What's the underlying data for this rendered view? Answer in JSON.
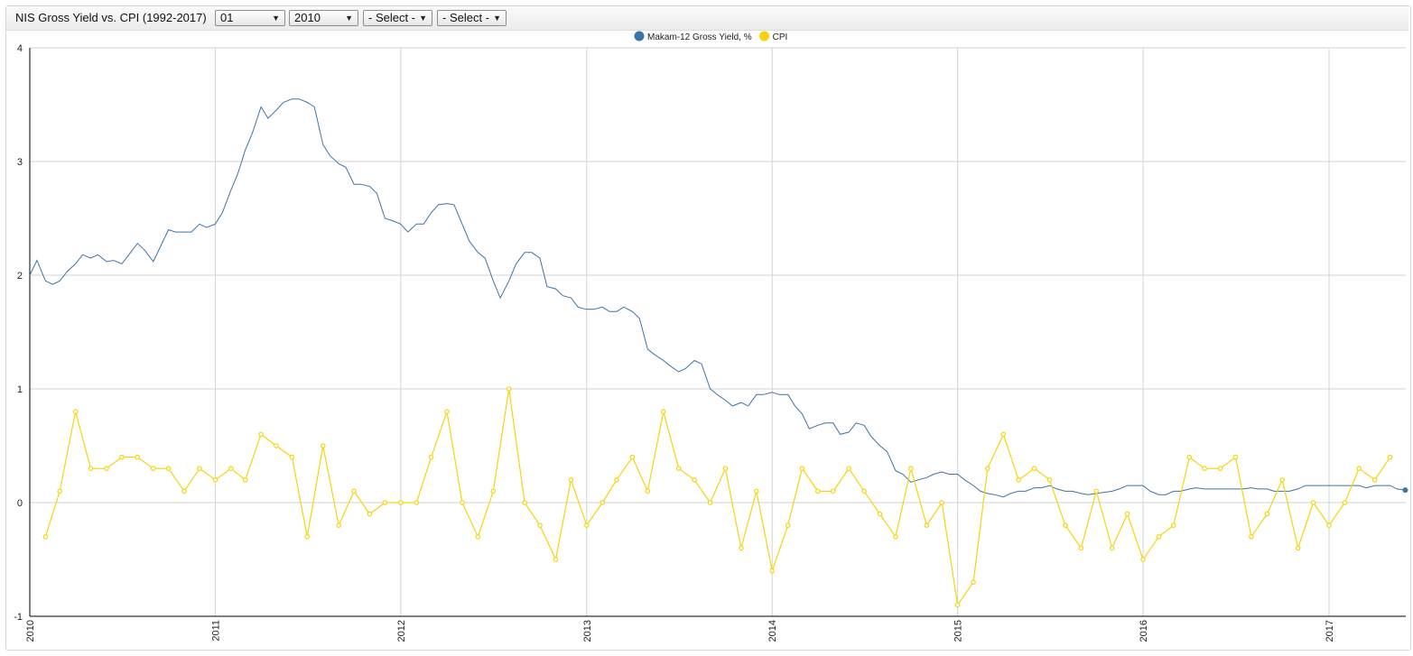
{
  "toolbar": {
    "title": "NIS Gross Yield vs. CPI (1992-2017)",
    "month_select": "01",
    "year_select": "2010",
    "select_a": "- Select -",
    "select_b": "- Select -",
    "arrow": "▼"
  },
  "chart_data": {
    "type": "line",
    "legend_position": "top-center",
    "grid": true,
    "ylim": [
      -1,
      4
    ],
    "yticks": [
      -1,
      0,
      1,
      2,
      3,
      4
    ],
    "xlim": [
      "2010-01-01",
      "2017-06-01"
    ],
    "xticks": [
      "2010",
      "2011",
      "2012",
      "2013",
      "2014",
      "2015",
      "2016",
      "2017"
    ],
    "series": [
      {
        "name": "Makam-12 Gross Yield, %",
        "color": "#3f74a6",
        "points": [
          [
            "2010-01-01",
            2.0
          ],
          [
            "2010-01-15",
            2.13
          ],
          [
            "2010-02-01",
            1.95
          ],
          [
            "2010-02-15",
            1.92
          ],
          [
            "2010-03-01",
            1.95
          ],
          [
            "2010-03-15",
            2.03
          ],
          [
            "2010-04-01",
            2.1
          ],
          [
            "2010-04-15",
            2.18
          ],
          [
            "2010-05-01",
            2.15
          ],
          [
            "2010-05-15",
            2.18
          ],
          [
            "2010-06-01",
            2.12
          ],
          [
            "2010-06-15",
            2.13
          ],
          [
            "2010-07-01",
            2.1
          ],
          [
            "2010-07-15",
            2.18
          ],
          [
            "2010-08-01",
            2.28
          ],
          [
            "2010-08-15",
            2.22
          ],
          [
            "2010-09-01",
            2.12
          ],
          [
            "2010-09-15",
            2.25
          ],
          [
            "2010-10-01",
            2.4
          ],
          [
            "2010-10-15",
            2.38
          ],
          [
            "2010-11-01",
            2.38
          ],
          [
            "2010-11-15",
            2.38
          ],
          [
            "2010-12-01",
            2.45
          ],
          [
            "2010-12-15",
            2.42
          ],
          [
            "2011-01-01",
            2.45
          ],
          [
            "2011-01-15",
            2.55
          ],
          [
            "2011-02-01",
            2.75
          ],
          [
            "2011-02-15",
            2.9
          ],
          [
            "2011-03-01",
            3.1
          ],
          [
            "2011-03-15",
            3.25
          ],
          [
            "2011-04-01",
            3.48
          ],
          [
            "2011-04-15",
            3.38
          ],
          [
            "2011-05-01",
            3.45
          ],
          [
            "2011-05-15",
            3.52
          ],
          [
            "2011-06-01",
            3.55
          ],
          [
            "2011-06-15",
            3.55
          ],
          [
            "2011-07-01",
            3.52
          ],
          [
            "2011-07-15",
            3.48
          ],
          [
            "2011-08-01",
            3.15
          ],
          [
            "2011-08-15",
            3.05
          ],
          [
            "2011-09-01",
            2.98
          ],
          [
            "2011-09-15",
            2.95
          ],
          [
            "2011-10-01",
            2.8
          ],
          [
            "2011-10-15",
            2.8
          ],
          [
            "2011-11-01",
            2.78
          ],
          [
            "2011-11-15",
            2.72
          ],
          [
            "2011-12-01",
            2.5
          ],
          [
            "2011-12-15",
            2.48
          ],
          [
            "2012-01-01",
            2.45
          ],
          [
            "2012-01-15",
            2.38
          ],
          [
            "2012-02-01",
            2.45
          ],
          [
            "2012-02-15",
            2.45
          ],
          [
            "2012-03-01",
            2.55
          ],
          [
            "2012-03-15",
            2.62
          ],
          [
            "2012-04-01",
            2.63
          ],
          [
            "2012-04-15",
            2.62
          ],
          [
            "2012-05-01",
            2.45
          ],
          [
            "2012-05-15",
            2.3
          ],
          [
            "2012-06-01",
            2.2
          ],
          [
            "2012-06-15",
            2.15
          ],
          [
            "2012-07-01",
            1.95
          ],
          [
            "2012-07-15",
            1.8
          ],
          [
            "2012-08-01",
            1.95
          ],
          [
            "2012-08-15",
            2.1
          ],
          [
            "2012-09-01",
            2.2
          ],
          [
            "2012-09-15",
            2.2
          ],
          [
            "2012-10-01",
            2.15
          ],
          [
            "2012-10-15",
            1.9
          ],
          [
            "2012-11-01",
            1.88
          ],
          [
            "2012-11-15",
            1.82
          ],
          [
            "2012-12-01",
            1.8
          ],
          [
            "2012-12-15",
            1.72
          ],
          [
            "2013-01-01",
            1.7
          ],
          [
            "2013-01-15",
            1.7
          ],
          [
            "2013-02-01",
            1.72
          ],
          [
            "2013-02-15",
            1.68
          ],
          [
            "2013-03-01",
            1.68
          ],
          [
            "2013-03-15",
            1.72
          ],
          [
            "2013-04-01",
            1.68
          ],
          [
            "2013-04-15",
            1.62
          ],
          [
            "2013-05-01",
            1.35
          ],
          [
            "2013-05-15",
            1.3
          ],
          [
            "2013-06-01",
            1.25
          ],
          [
            "2013-06-15",
            1.2
          ],
          [
            "2013-07-01",
            1.15
          ],
          [
            "2013-07-15",
            1.18
          ],
          [
            "2013-08-01",
            1.25
          ],
          [
            "2013-08-15",
            1.22
          ],
          [
            "2013-09-01",
            1.0
          ],
          [
            "2013-09-15",
            0.95
          ],
          [
            "2013-10-01",
            0.9
          ],
          [
            "2013-10-15",
            0.85
          ],
          [
            "2013-11-01",
            0.88
          ],
          [
            "2013-11-15",
            0.85
          ],
          [
            "2013-12-01",
            0.95
          ],
          [
            "2013-12-15",
            0.95
          ],
          [
            "2014-01-01",
            0.97
          ],
          [
            "2014-01-15",
            0.95
          ],
          [
            "2014-02-01",
            0.95
          ],
          [
            "2014-02-15",
            0.85
          ],
          [
            "2014-03-01",
            0.78
          ],
          [
            "2014-03-15",
            0.65
          ],
          [
            "2014-04-01",
            0.68
          ],
          [
            "2014-04-15",
            0.7
          ],
          [
            "2014-05-01",
            0.7
          ],
          [
            "2014-05-15",
            0.6
          ],
          [
            "2014-06-01",
            0.62
          ],
          [
            "2014-06-15",
            0.7
          ],
          [
            "2014-07-01",
            0.68
          ],
          [
            "2014-07-15",
            0.58
          ],
          [
            "2014-08-01",
            0.5
          ],
          [
            "2014-08-15",
            0.45
          ],
          [
            "2014-09-01",
            0.28
          ],
          [
            "2014-09-15",
            0.25
          ],
          [
            "2014-10-01",
            0.18
          ],
          [
            "2014-10-15",
            0.2
          ],
          [
            "2014-11-01",
            0.22
          ],
          [
            "2014-11-15",
            0.25
          ],
          [
            "2014-12-01",
            0.27
          ],
          [
            "2014-12-15",
            0.25
          ],
          [
            "2015-01-01",
            0.25
          ],
          [
            "2015-01-15",
            0.2
          ],
          [
            "2015-02-01",
            0.15
          ],
          [
            "2015-02-15",
            0.1
          ],
          [
            "2015-03-01",
            0.08
          ],
          [
            "2015-03-15",
            0.07
          ],
          [
            "2015-04-01",
            0.05
          ],
          [
            "2015-04-15",
            0.08
          ],
          [
            "2015-05-01",
            0.1
          ],
          [
            "2015-05-15",
            0.1
          ],
          [
            "2015-06-01",
            0.13
          ],
          [
            "2015-06-15",
            0.13
          ],
          [
            "2015-07-01",
            0.15
          ],
          [
            "2015-07-15",
            0.12
          ],
          [
            "2015-08-01",
            0.1
          ],
          [
            "2015-08-15",
            0.1
          ],
          [
            "2015-09-01",
            0.08
          ],
          [
            "2015-09-15",
            0.07
          ],
          [
            "2015-10-01",
            0.08
          ],
          [
            "2015-10-15",
            0.09
          ],
          [
            "2015-11-01",
            0.1
          ],
          [
            "2015-11-15",
            0.12
          ],
          [
            "2015-12-01",
            0.15
          ],
          [
            "2015-12-15",
            0.15
          ],
          [
            "2016-01-01",
            0.15
          ],
          [
            "2016-01-15",
            0.1
          ],
          [
            "2016-02-01",
            0.07
          ],
          [
            "2016-02-15",
            0.07
          ],
          [
            "2016-03-01",
            0.1
          ],
          [
            "2016-03-15",
            0.1
          ],
          [
            "2016-04-01",
            0.12
          ],
          [
            "2016-04-15",
            0.13
          ],
          [
            "2016-05-01",
            0.12
          ],
          [
            "2016-05-15",
            0.12
          ],
          [
            "2016-06-01",
            0.12
          ],
          [
            "2016-06-15",
            0.12
          ],
          [
            "2016-07-01",
            0.12
          ],
          [
            "2016-07-15",
            0.12
          ],
          [
            "2016-08-01",
            0.13
          ],
          [
            "2016-08-15",
            0.12
          ],
          [
            "2016-09-01",
            0.12
          ],
          [
            "2016-09-15",
            0.1
          ],
          [
            "2016-10-01",
            0.1
          ],
          [
            "2016-10-15",
            0.1
          ],
          [
            "2016-11-01",
            0.12
          ],
          [
            "2016-11-15",
            0.15
          ],
          [
            "2016-12-01",
            0.15
          ],
          [
            "2016-12-15",
            0.15
          ],
          [
            "2017-01-01",
            0.15
          ],
          [
            "2017-01-15",
            0.15
          ],
          [
            "2017-02-01",
            0.15
          ],
          [
            "2017-02-15",
            0.15
          ],
          [
            "2017-03-01",
            0.15
          ],
          [
            "2017-03-15",
            0.13
          ],
          [
            "2017-04-01",
            0.15
          ],
          [
            "2017-04-15",
            0.15
          ],
          [
            "2017-05-01",
            0.15
          ],
          [
            "2017-05-15",
            0.12
          ],
          [
            "2017-05-31",
            0.11
          ]
        ]
      },
      {
        "name": "CPI",
        "color": "#f5d40f",
        "points": [
          [
            "2010-02",
            -0.3
          ],
          [
            "2010-03",
            0.1
          ],
          [
            "2010-04",
            0.8
          ],
          [
            "2010-05",
            0.3
          ],
          [
            "2010-06",
            0.3
          ],
          [
            "2010-07",
            0.4
          ],
          [
            "2010-08",
            0.4
          ],
          [
            "2010-09",
            0.3
          ],
          [
            "2010-10",
            0.3
          ],
          [
            "2010-11",
            0.1
          ],
          [
            "2010-12",
            0.3
          ],
          [
            "2011-01",
            0.2
          ],
          [
            "2011-02",
            0.3
          ],
          [
            "2011-03",
            0.2
          ],
          [
            "2011-04",
            0.6
          ],
          [
            "2011-05",
            0.5
          ],
          [
            "2011-06",
            0.4
          ],
          [
            "2011-07",
            -0.3
          ],
          [
            "2011-08",
            0.5
          ],
          [
            "2011-09",
            -0.2
          ],
          [
            "2011-10",
            0.1
          ],
          [
            "2011-11",
            -0.1
          ],
          [
            "2011-12",
            0.0
          ],
          [
            "2012-01",
            0.0
          ],
          [
            "2012-02",
            0.0
          ],
          [
            "2012-03",
            0.4
          ],
          [
            "2012-04",
            0.8
          ],
          [
            "2012-05",
            0.0
          ],
          [
            "2012-06",
            -0.3
          ],
          [
            "2012-07",
            0.1
          ],
          [
            "2012-08",
            1.0
          ],
          [
            "2012-09",
            0.0
          ],
          [
            "2012-10",
            -0.2
          ],
          [
            "2012-11",
            -0.5
          ],
          [
            "2012-12",
            0.2
          ],
          [
            "2013-01",
            -0.2
          ],
          [
            "2013-02",
            0.0
          ],
          [
            "2013-03",
            0.2
          ],
          [
            "2013-04",
            0.4
          ],
          [
            "2013-05",
            0.1
          ],
          [
            "2013-06",
            0.8
          ],
          [
            "2013-07",
            0.3
          ],
          [
            "2013-08",
            0.2
          ],
          [
            "2013-09",
            0.0
          ],
          [
            "2013-10",
            0.3
          ],
          [
            "2013-11",
            -0.4
          ],
          [
            "2013-12",
            0.1
          ],
          [
            "2014-01",
            -0.6
          ],
          [
            "2014-02",
            -0.2
          ],
          [
            "2014-03",
            0.3
          ],
          [
            "2014-04",
            0.1
          ],
          [
            "2014-05",
            0.1
          ],
          [
            "2014-06",
            0.3
          ],
          [
            "2014-07",
            0.1
          ],
          [
            "2014-08",
            -0.1
          ],
          [
            "2014-09",
            -0.3
          ],
          [
            "2014-10",
            0.3
          ],
          [
            "2014-11",
            -0.2
          ],
          [
            "2014-12",
            0.0
          ],
          [
            "2015-01",
            -0.9
          ],
          [
            "2015-02",
            -0.7
          ],
          [
            "2015-03",
            0.3
          ],
          [
            "2015-04",
            0.6
          ],
          [
            "2015-05",
            0.2
          ],
          [
            "2015-06",
            0.3
          ],
          [
            "2015-07",
            0.2
          ],
          [
            "2015-08",
            -0.2
          ],
          [
            "2015-09",
            -0.4
          ],
          [
            "2015-10",
            0.1
          ],
          [
            "2015-11",
            -0.4
          ],
          [
            "2015-12",
            -0.1
          ],
          [
            "2016-01",
            -0.5
          ],
          [
            "2016-02",
            -0.3
          ],
          [
            "2016-03",
            -0.2
          ],
          [
            "2016-04",
            0.4
          ],
          [
            "2016-05",
            0.3
          ],
          [
            "2016-06",
            0.3
          ],
          [
            "2016-07",
            0.4
          ],
          [
            "2016-08",
            -0.3
          ],
          [
            "2016-09",
            -0.1
          ],
          [
            "2016-10",
            0.2
          ],
          [
            "2016-11",
            -0.4
          ],
          [
            "2016-12",
            0.0
          ],
          [
            "2017-01",
            -0.2
          ],
          [
            "2017-02",
            0.0
          ],
          [
            "2017-03",
            0.3
          ],
          [
            "2017-04",
            0.2
          ],
          [
            "2017-05",
            0.4
          ]
        ]
      }
    ]
  }
}
